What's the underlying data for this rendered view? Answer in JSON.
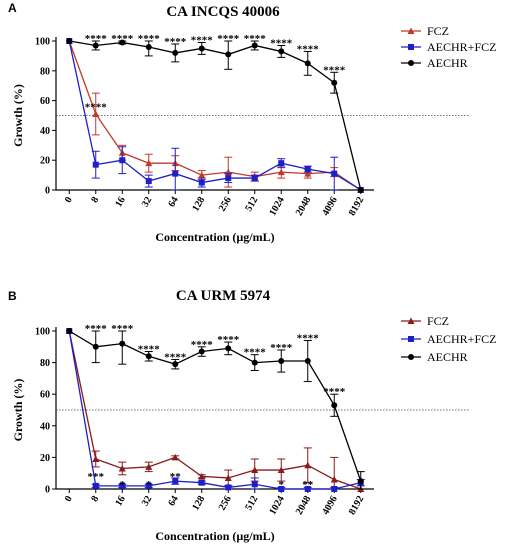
{
  "chart_data": [
    {
      "panel_label": "A",
      "type": "line",
      "title": "CA INCQS 40006",
      "xlabel": "Concentration (µg/mL)",
      "ylabel": "Growth (%)",
      "categories": [
        "0",
        "8",
        "16",
        "32",
        "64",
        "128",
        "256",
        "512",
        "1024",
        "2048",
        "4096",
        "8192"
      ],
      "ylim": [
        0,
        100
      ],
      "yticks": [
        0,
        20,
        40,
        60,
        80,
        100
      ],
      "reference_line": 50,
      "grid": false,
      "legend_position": "right",
      "series": [
        {
          "name": "FCZ",
          "color": "#c0392b",
          "marker": "triangle",
          "values": [
            100,
            51,
            25,
            18,
            18,
            10,
            12,
            9,
            12,
            11,
            12,
            0
          ],
          "errors": [
            0,
            14,
            5,
            6,
            5,
            3,
            10,
            3,
            4,
            3,
            3,
            0
          ]
        },
        {
          "name": "AECHR+FCZ",
          "color": "#1f1fc8",
          "marker": "square",
          "values": [
            100,
            17,
            20,
            6,
            11,
            5,
            8,
            8,
            18,
            14,
            11,
            0
          ],
          "errors": [
            0,
            9,
            9,
            4,
            17,
            3,
            3,
            2,
            3,
            2,
            11,
            0
          ]
        },
        {
          "name": "AECHR",
          "color": "#000000",
          "marker": "circle",
          "values": [
            100,
            97,
            99,
            96,
            92,
            95,
            91,
            97,
            93,
            85,
            72,
            0
          ],
          "errors": [
            0,
            3,
            1,
            6,
            6,
            4,
            10,
            3,
            4,
            8,
            7,
            0
          ]
        }
      ],
      "annotations": [
        {
          "x": "8",
          "y": 97,
          "text": "****",
          "series": "AECHR"
        },
        {
          "x": "16",
          "y": 99,
          "text": "****",
          "series": "AECHR"
        },
        {
          "x": "32",
          "y": 96,
          "text": "****",
          "series": "AECHR"
        },
        {
          "x": "64",
          "y": 92,
          "text": "****",
          "series": "AECHR"
        },
        {
          "x": "128",
          "y": 95,
          "text": "****",
          "series": "AECHR"
        },
        {
          "x": "256",
          "y": 91,
          "text": "****",
          "series": "AECHR"
        },
        {
          "x": "512",
          "y": 97,
          "text": "****",
          "series": "AECHR"
        },
        {
          "x": "1024",
          "y": 93,
          "text": "****",
          "series": "AECHR"
        },
        {
          "x": "2048",
          "y": 85,
          "text": "****",
          "series": "AECHR"
        },
        {
          "x": "4096",
          "y": 72,
          "text": "****",
          "series": "AECHR"
        },
        {
          "x": "8",
          "y": 40,
          "text": "****",
          "series": "FCZ"
        }
      ]
    },
    {
      "panel_label": "B",
      "type": "line",
      "title": "CA URM 5974",
      "xlabel": "Concentration (µg/mL)",
      "ylabel": "Growth (%)",
      "categories": [
        "0",
        "8",
        "16",
        "32",
        "64",
        "128",
        "256",
        "512",
        "1024",
        "2048",
        "4096",
        "8192"
      ],
      "ylim": [
        0,
        100
      ],
      "yticks": [
        0,
        20,
        40,
        60,
        80,
        100
      ],
      "reference_line": 50,
      "grid": false,
      "legend_position": "right",
      "series": [
        {
          "name": "FCZ",
          "color": "#8b1a1a",
          "marker": "triangle",
          "values": [
            100,
            19,
            13,
            14,
            20,
            8,
            7,
            12,
            12,
            15,
            6,
            0
          ],
          "errors": [
            0,
            5,
            4,
            3,
            1,
            1,
            5,
            7,
            7,
            11,
            14,
            0
          ]
        },
        {
          "name": "AECHR+FCZ",
          "color": "#1f1fc8",
          "marker": "square",
          "values": [
            100,
            2,
            2,
            2,
            5,
            4,
            1,
            3,
            0,
            0,
            0,
            4
          ],
          "errors": [
            0,
            1,
            1,
            1,
            2,
            1,
            1,
            4,
            1,
            1,
            1,
            2
          ]
        },
        {
          "name": "AECHR",
          "color": "#000000",
          "marker": "circle",
          "values": [
            100,
            90,
            92,
            84,
            79,
            87,
            89,
            80,
            81,
            81,
            53,
            5
          ],
          "errors": [
            0,
            10,
            13,
            3,
            3,
            3,
            4,
            5,
            7,
            13,
            7,
            6
          ]
        }
      ],
      "annotations": [
        {
          "x": "8",
          "y": 90,
          "text": "****",
          "series": "AECHR"
        },
        {
          "x": "16",
          "y": 92,
          "text": "****",
          "series": "AECHR"
        },
        {
          "x": "32",
          "y": 84,
          "text": "****",
          "series": "AECHR"
        },
        {
          "x": "64",
          "y": 79,
          "text": "****",
          "series": "AECHR"
        },
        {
          "x": "128",
          "y": 87,
          "text": "****",
          "series": "AECHR"
        },
        {
          "x": "256",
          "y": 89,
          "text": "****",
          "series": "AECHR"
        },
        {
          "x": "512",
          "y": 80,
          "text": "****",
          "series": "AECHR"
        },
        {
          "x": "1024",
          "y": 81,
          "text": "****",
          "series": "AECHR"
        },
        {
          "x": "2048",
          "y": 81,
          "text": "****",
          "series": "AECHR"
        },
        {
          "x": "4096",
          "y": 53,
          "text": "****",
          "series": "AECHR"
        },
        {
          "x": "8",
          "y": 10,
          "text": "***",
          "series": "AECHR+FCZ"
        },
        {
          "x": "16",
          "y": 4,
          "text": "*",
          "series": "AECHR+FCZ"
        },
        {
          "x": "32",
          "y": 4,
          "text": "*",
          "series": "AECHR+FCZ"
        },
        {
          "x": "64",
          "y": 10,
          "text": "**",
          "series": "AECHR+FCZ"
        },
        {
          "x": "1024",
          "y": 4,
          "text": "*",
          "series": "AECHR+FCZ"
        },
        {
          "x": "2048",
          "y": 4,
          "text": "**",
          "series": "AECHR+FCZ"
        }
      ]
    }
  ]
}
